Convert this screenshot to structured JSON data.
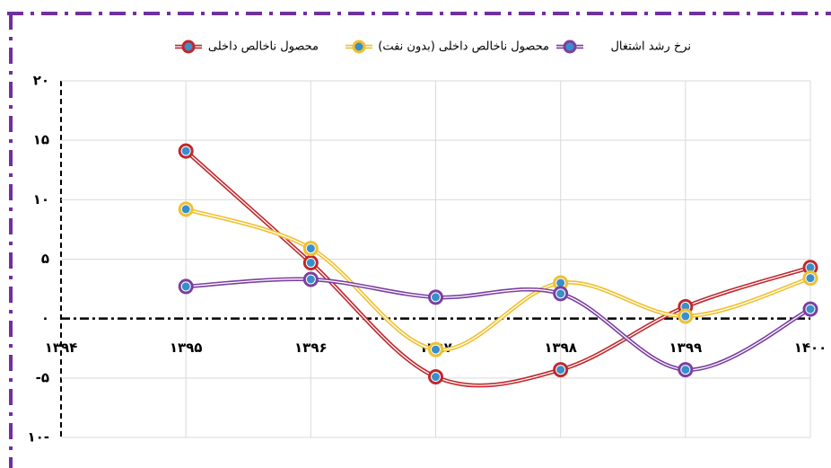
{
  "chart_data": {
    "type": "line",
    "categories": [
      "۱۳۹۴",
      "۱۳۹۵",
      "۱۳۹۶",
      "۱۳۹۷",
      "۱۳۹۸",
      "۱۳۹۹",
      "۱۴۰۰"
    ],
    "series": [
      {
        "name": "محصول ناخالص داخلی",
        "color": "#c0282d",
        "values": [
          null,
          14.1,
          4.7,
          -4.9,
          -4.3,
          1.0,
          4.3
        ]
      },
      {
        "name": "محصول ناخالص داخلی (بدون نفت)",
        "color": "#f0c030",
        "values": [
          null,
          9.2,
          5.9,
          -2.6,
          3.0,
          0.2,
          3.4
        ]
      },
      {
        "name": "نرخ رشد اشتغال",
        "color": "#7b3fa0",
        "values": [
          null,
          2.7,
          3.3,
          1.8,
          2.1,
          -4.3,
          0.8
        ]
      }
    ],
    "ylim": [
      -10,
      20
    ],
    "yticks": [
      {
        "value": 20,
        "label": "۲۰"
      },
      {
        "value": 15,
        "label": "۱۵"
      },
      {
        "value": 10,
        "label": "۱۰"
      },
      {
        "value": 5,
        "label": "۵"
      },
      {
        "value": 0,
        "label": "۰"
      },
      {
        "value": -5,
        "label": "-۵"
      },
      {
        "value": -10,
        "label": "۱۰-"
      }
    ],
    "grid": true,
    "marker_color": "#3a8fc8"
  }
}
